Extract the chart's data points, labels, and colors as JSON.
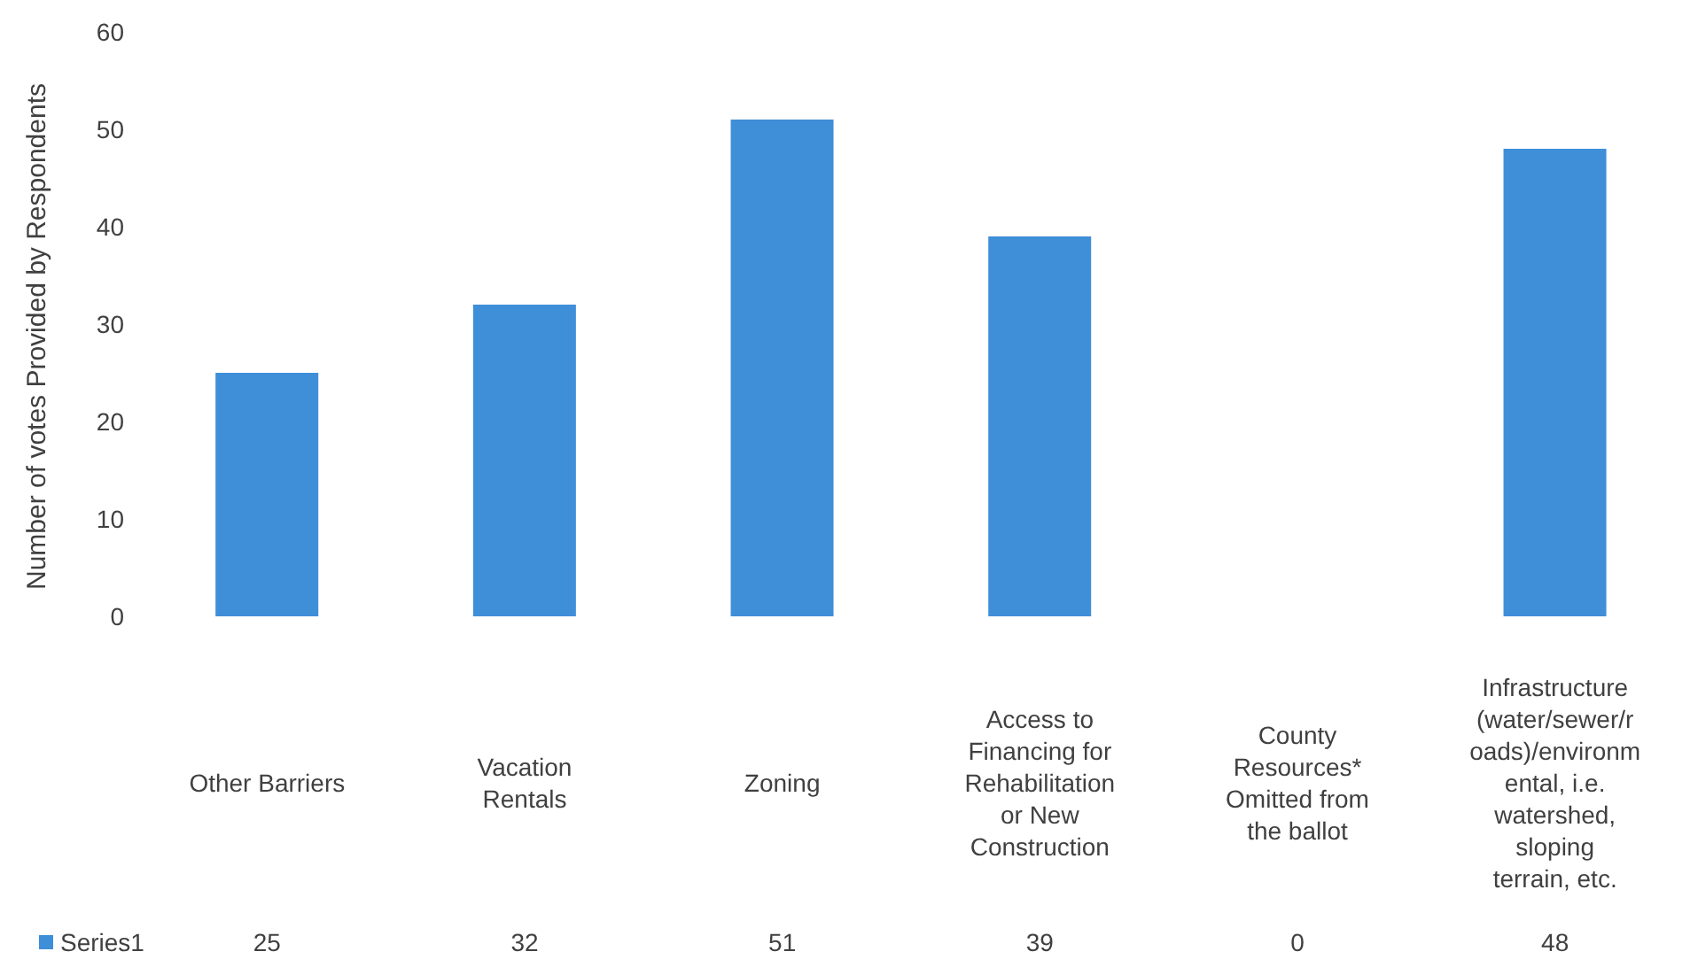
{
  "chart_data": {
    "type": "bar",
    "ylabel": "Number of votes Provided by Respondents",
    "categories": [
      "Other Barriers",
      "Vacation Rentals",
      "Zoning",
      "Access to Financing for Rehabilitation or New Construction",
      "County Resources* Omitted from the ballot",
      "Infrastructure (water/sewer/roads)/environmental, i.e. watershed, sloping terrain, etc."
    ],
    "series": [
      {
        "name": "Series1",
        "color": "#3f8ed8",
        "values": [
          25,
          32,
          51,
          39,
          0,
          48
        ]
      }
    ],
    "ylim": [
      0,
      60
    ],
    "yticks": [
      0,
      10,
      20,
      30,
      40,
      50,
      60
    ],
    "grid": false,
    "legend": "bottom",
    "data_labels": true
  }
}
